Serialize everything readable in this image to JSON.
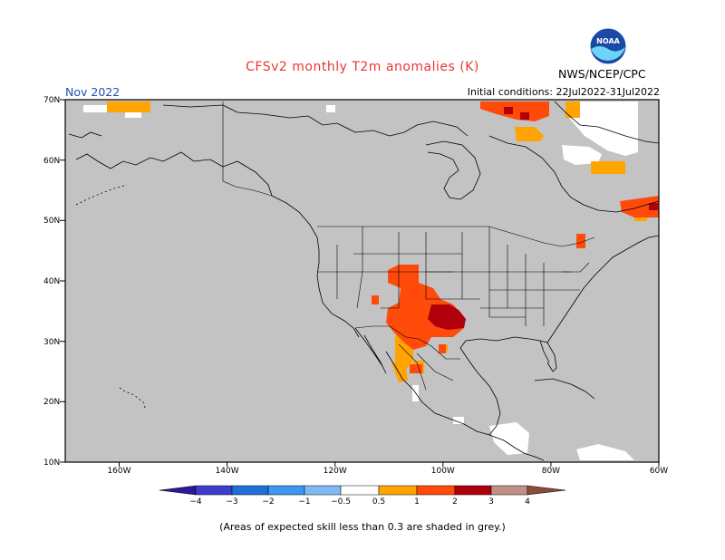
{
  "header": {
    "title": "CFSv2 monthly T2m anomalies (K)",
    "month": "Nov 2022",
    "initial_conditions": "Initial conditions: 22Jul2022-31Jul2022",
    "agency": "NWS/NCEP/CPC",
    "logo_text": "NOAA"
  },
  "map": {
    "region": "North America",
    "lon_range": [
      -190,
      -80
    ],
    "lat_range": [
      10,
      70
    ],
    "lat_labels": [
      "70N",
      "60N",
      "50N",
      "40N",
      "30N",
      "20N",
      "10N"
    ],
    "lon_labels": [
      "160W",
      "140W",
      "120W",
      "100W",
      "80W",
      "60W"
    ],
    "background_color": "#c3c3c3",
    "land_color": "#ffffff"
  },
  "colorbar": {
    "ticks": [
      "−4",
      "−3",
      "−2",
      "−1",
      "−0.5",
      "0.5",
      "1",
      "2",
      "3",
      "4"
    ],
    "colors": [
      "#2a1a9a",
      "#3d3dcc",
      "#1f6fd6",
      "#3d96ef",
      "#7fbaf5",
      "#ffffff",
      "#ffa400",
      "#ff4a0a",
      "#b0000c",
      "#c18f86",
      "#8a4c3e"
    ]
  },
  "footnote": "(Areas of expected skill less than 0.3 are shaded in grey.)"
}
